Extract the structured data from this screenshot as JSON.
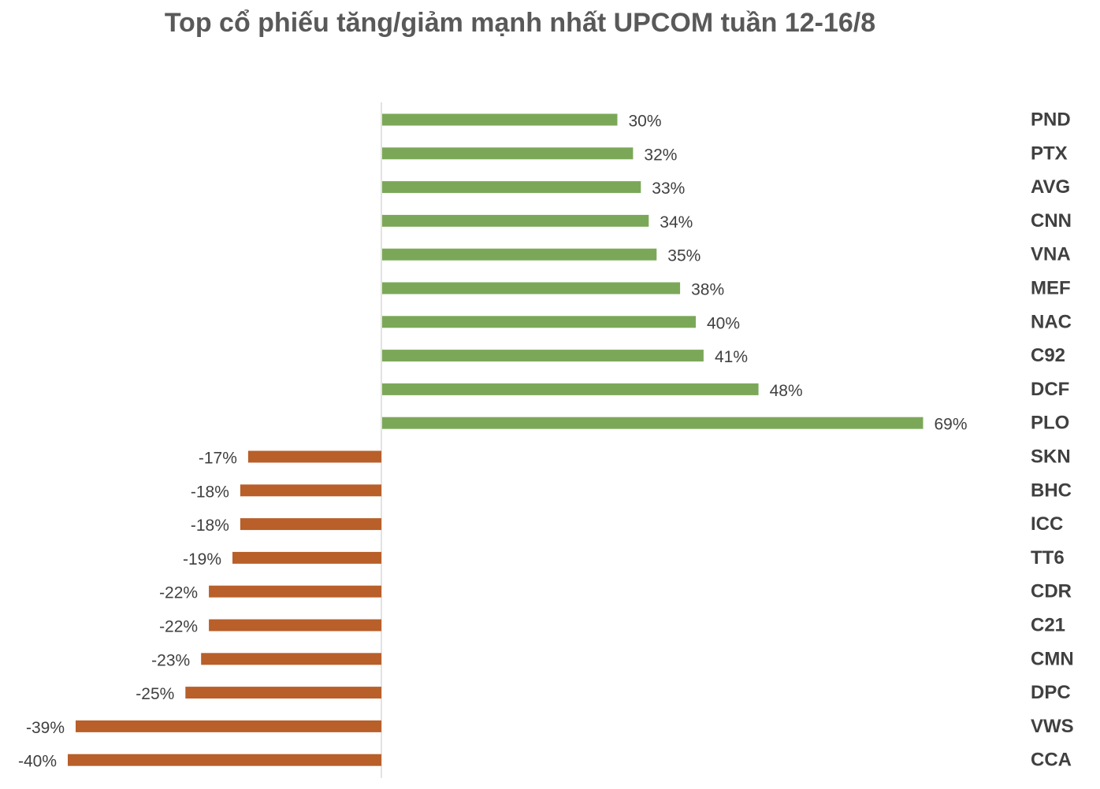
{
  "chart_data": {
    "type": "bar",
    "orientation": "horizontal",
    "title": "Top cổ phiếu tăng/giảm mạnh nhất UPCOM tuần 12-16/8",
    "categories": [
      "PND",
      "PTX",
      "AVG",
      "CNN",
      "VNA",
      "MEF",
      "NAC",
      "C92",
      "DCF",
      "PLO",
      "SKN",
      "BHC",
      "ICC",
      "TT6",
      "CDR",
      "C21",
      "CMN",
      "DPC",
      "VWS",
      "CCA"
    ],
    "values": [
      30,
      32,
      33,
      34,
      35,
      38,
      40,
      41,
      48,
      69,
      -17,
      -18,
      -18,
      -19,
      -22,
      -22,
      -23,
      -25,
      -39,
      -40
    ],
    "value_labels": [
      "30%",
      "32%",
      "33%",
      "34%",
      "35%",
      "38%",
      "40%",
      "41%",
      "48%",
      "69%",
      "-17%",
      "-18%",
      "-18%",
      "-19%",
      "-22%",
      "-22%",
      "-23%",
      "-25%",
      "-39%",
      "-40%"
    ],
    "unit": "%",
    "xlim": [
      -40,
      69
    ],
    "grid": false,
    "legend": "none",
    "colors": {
      "positive": "#7BA858",
      "negative": "#B85F2A",
      "axis": "#D9D9D9",
      "title": "#595959",
      "text": "#404040"
    }
  }
}
